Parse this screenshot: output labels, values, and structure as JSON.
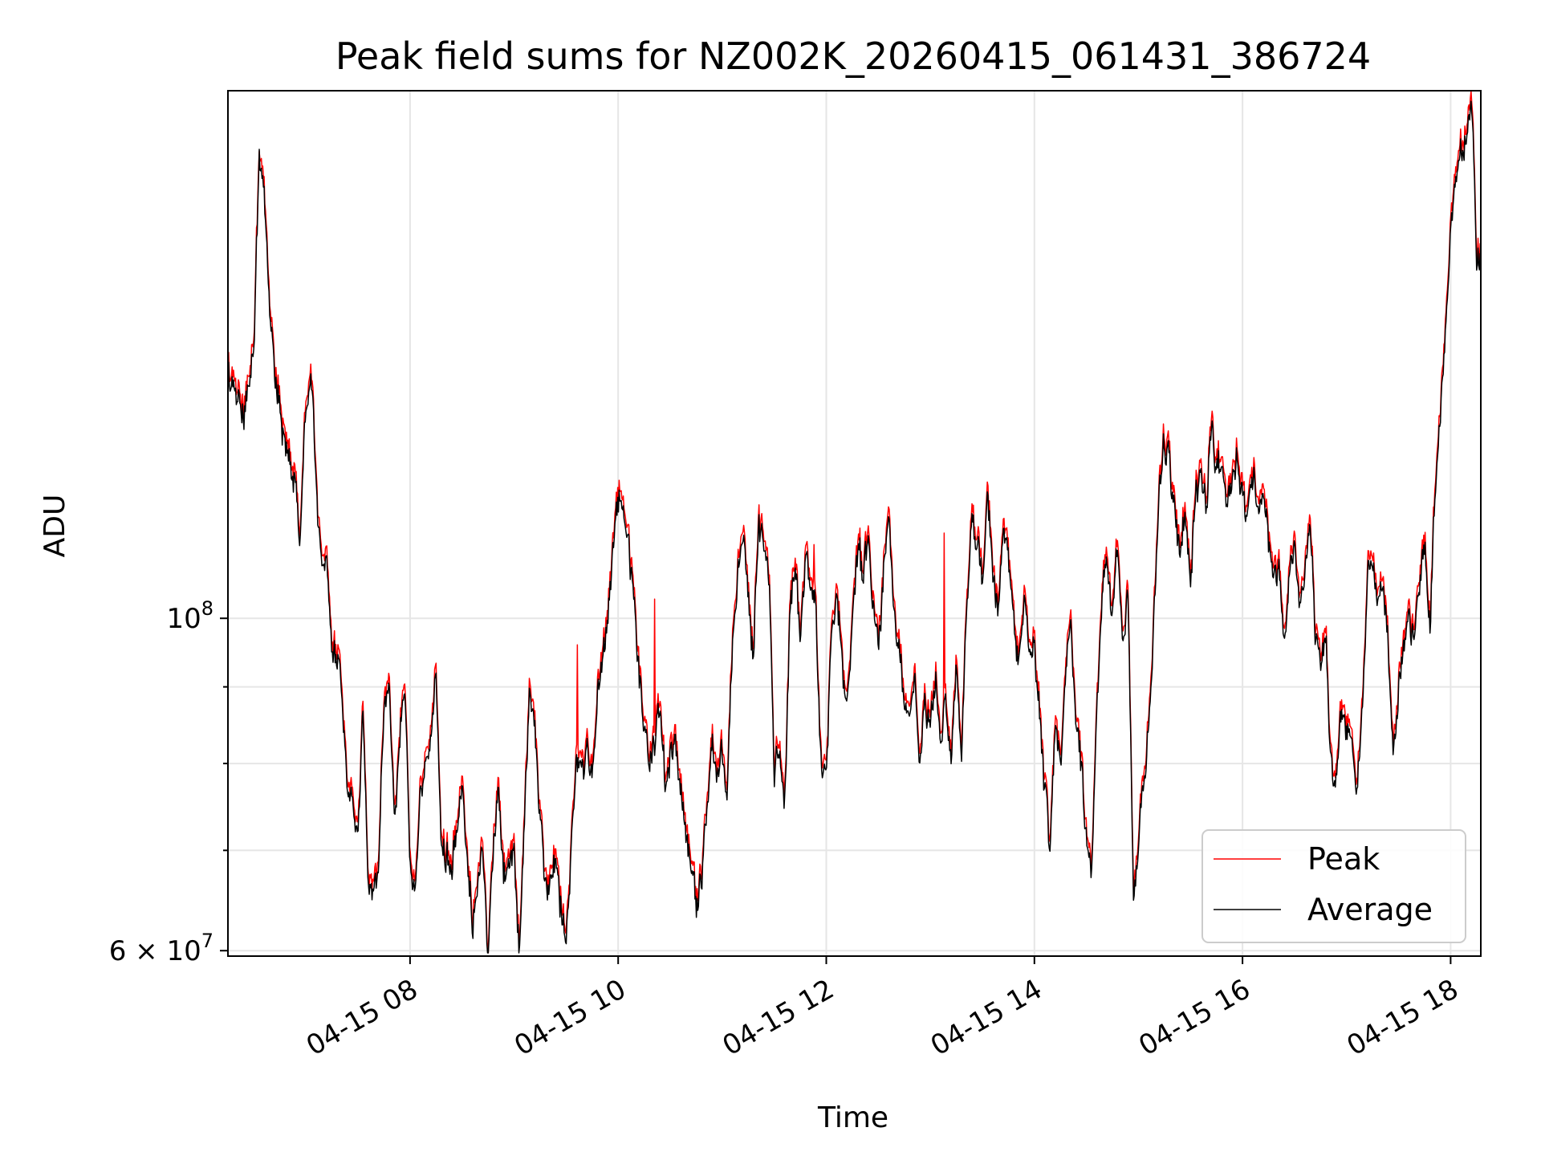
{
  "chart_data": {
    "type": "line",
    "title": "Peak field sums for NZ002K_20260415_061431_386724",
    "xlabel": "Time",
    "ylabel": "ADU",
    "y_scale": "log",
    "ylim": [
      59500000,
      225000000
    ],
    "xlim_hours": [
      6.25,
      18.29
    ],
    "grid": true,
    "legend_position": "lower right",
    "x_ticks": [
      {
        "hour": 8,
        "label": "04-15 08"
      },
      {
        "hour": 10,
        "label": "04-15 10"
      },
      {
        "hour": 12,
        "label": "04-15 12"
      },
      {
        "hour": 14,
        "label": "04-15 14"
      },
      {
        "hour": 16,
        "label": "04-15 16"
      },
      {
        "hour": 18,
        "label": "04-15 18"
      }
    ],
    "y_major_ticks": [
      {
        "value": 100000000,
        "base": "10",
        "exp": "8"
      },
      {
        "value": 60000000,
        "base": "6 × 10",
        "exp": "7"
      }
    ],
    "y_minor_gridlines": [
      70000000,
      80000000,
      90000000
    ],
    "series": [
      {
        "name": "Peak",
        "color": "#ff0000",
        "anomalies": [
          [
            6.55,
            205000000
          ],
          [
            9.61,
            96000000
          ],
          [
            10.35,
            103000000
          ],
          [
            11.88,
            112000000
          ],
          [
            13.13,
            114000000
          ]
        ],
        "keyframes": [
          [
            6.25,
            148000000
          ],
          [
            6.3,
            145000000
          ],
          [
            6.4,
            138000000
          ],
          [
            6.5,
            155000000
          ],
          [
            6.55,
            205000000
          ],
          [
            6.6,
            192000000
          ],
          [
            6.65,
            165000000
          ],
          [
            6.7,
            150000000
          ],
          [
            6.8,
            132000000
          ],
          [
            6.9,
            125000000
          ],
          [
            6.95,
            115000000
          ],
          [
            7.0,
            140000000
          ],
          [
            7.05,
            146000000
          ],
          [
            7.1,
            125000000
          ],
          [
            7.15,
            110000000
          ],
          [
            7.2,
            112000000
          ],
          [
            7.25,
            96000000
          ],
          [
            7.3,
            95000000
          ],
          [
            7.35,
            90000000
          ],
          [
            7.4,
            77000000
          ],
          [
            7.5,
            74000000
          ],
          [
            7.55,
            88000000
          ],
          [
            7.6,
            68000000
          ],
          [
            7.65,
            66000000
          ],
          [
            7.7,
            70000000
          ],
          [
            7.75,
            88000000
          ],
          [
            7.8,
            92000000
          ],
          [
            7.85,
            74000000
          ],
          [
            7.9,
            85000000
          ],
          [
            7.95,
            90000000
          ],
          [
            8.0,
            70000000
          ],
          [
            8.05,
            68000000
          ],
          [
            8.1,
            78000000
          ],
          [
            8.15,
            82000000
          ],
          [
            8.2,
            86000000
          ],
          [
            8.25,
            93000000
          ],
          [
            8.3,
            72000000
          ],
          [
            8.4,
            70000000
          ],
          [
            8.5,
            78000000
          ],
          [
            8.6,
            64000000
          ],
          [
            8.7,
            72000000
          ],
          [
            8.75,
            60500000
          ],
          [
            8.8,
            70000000
          ],
          [
            8.85,
            79000000
          ],
          [
            8.9,
            68000000
          ],
          [
            9.0,
            72000000
          ],
          [
            9.05,
            60000000
          ],
          [
            9.1,
            75000000
          ],
          [
            9.15,
            90000000
          ],
          [
            9.2,
            86000000
          ],
          [
            9.3,
            66000000
          ],
          [
            9.4,
            70000000
          ],
          [
            9.5,
            61000000
          ],
          [
            9.55,
            72000000
          ],
          [
            9.6,
            80000000
          ],
          [
            9.7,
            83000000
          ],
          [
            9.75,
            80000000
          ],
          [
            9.8,
            92000000
          ],
          [
            9.85,
            96000000
          ],
          [
            9.9,
            102000000
          ],
          [
            9.95,
            112000000
          ],
          [
            10.0,
            123000000
          ],
          [
            10.05,
            117000000
          ],
          [
            10.1,
            112000000
          ],
          [
            10.15,
            107000000
          ],
          [
            10.2,
            93000000
          ],
          [
            10.3,
            80000000
          ],
          [
            10.4,
            88000000
          ],
          [
            10.45,
            78000000
          ],
          [
            10.5,
            83000000
          ],
          [
            10.55,
            86000000
          ],
          [
            10.6,
            77000000
          ],
          [
            10.7,
            70000000
          ],
          [
            10.75,
            65000000
          ],
          [
            10.8,
            67000000
          ],
          [
            10.85,
            75000000
          ],
          [
            10.9,
            84000000
          ],
          [
            10.95,
            80000000
          ],
          [
            11.0,
            82000000
          ],
          [
            11.05,
            78000000
          ],
          [
            11.1,
            98000000
          ],
          [
            11.15,
            110000000
          ],
          [
            11.2,
            115000000
          ],
          [
            11.25,
            105000000
          ],
          [
            11.3,
            97000000
          ],
          [
            11.35,
            118000000
          ],
          [
            11.4,
            115000000
          ],
          [
            11.45,
            108000000
          ],
          [
            11.5,
            80000000
          ],
          [
            11.55,
            85000000
          ],
          [
            11.6,
            76000000
          ],
          [
            11.65,
            102000000
          ],
          [
            11.7,
            110000000
          ],
          [
            11.75,
            98000000
          ],
          [
            11.8,
            112000000
          ],
          [
            11.85,
            108000000
          ],
          [
            11.9,
            102000000
          ],
          [
            11.95,
            81000000
          ],
          [
            12.0,
            79000000
          ],
          [
            12.05,
            100000000
          ],
          [
            12.1,
            104000000
          ],
          [
            12.15,
            96000000
          ],
          [
            12.2,
            88000000
          ],
          [
            12.25,
            101000000
          ],
          [
            12.3,
            112000000
          ],
          [
            12.35,
            108000000
          ],
          [
            12.4,
            115000000
          ],
          [
            12.45,
            104000000
          ],
          [
            12.5,
            97000000
          ],
          [
            12.55,
            108000000
          ],
          [
            12.6,
            115000000
          ],
          [
            12.65,
            104000000
          ],
          [
            12.7,
            96000000
          ],
          [
            12.75,
            90000000
          ],
          [
            12.8,
            86000000
          ],
          [
            12.85,
            92000000
          ],
          [
            12.9,
            80000000
          ],
          [
            12.95,
            90000000
          ],
          [
            13.0,
            86000000
          ],
          [
            13.05,
            93000000
          ],
          [
            13.1,
            82000000
          ],
          [
            13.15,
            90000000
          ],
          [
            13.2,
            81000000
          ],
          [
            13.25,
            95000000
          ],
          [
            13.3,
            82000000
          ],
          [
            13.35,
            105000000
          ],
          [
            13.4,
            120000000
          ],
          [
            13.45,
            113000000
          ],
          [
            13.5,
            107000000
          ],
          [
            13.55,
            122000000
          ],
          [
            13.6,
            110000000
          ],
          [
            13.65,
            102000000
          ],
          [
            13.7,
            117000000
          ],
          [
            13.75,
            110000000
          ],
          [
            13.8,
            100000000
          ],
          [
            13.85,
            98000000
          ],
          [
            13.9,
            105000000
          ],
          [
            13.95,
            96000000
          ],
          [
            14.0,
            98000000
          ],
          [
            14.05,
            88000000
          ],
          [
            14.1,
            78000000
          ],
          [
            14.15,
            71000000
          ],
          [
            14.2,
            85000000
          ],
          [
            14.25,
            81000000
          ],
          [
            14.3,
            92000000
          ],
          [
            14.35,
            101000000
          ],
          [
            14.4,
            88000000
          ],
          [
            14.45,
            81000000
          ],
          [
            14.5,
            72000000
          ],
          [
            14.55,
            69000000
          ],
          [
            14.6,
            88000000
          ],
          [
            14.65,
            105000000
          ],
          [
            14.7,
            112000000
          ],
          [
            14.75,
            100000000
          ],
          [
            14.8,
            115000000
          ],
          [
            14.85,
            96000000
          ],
          [
            14.9,
            107000000
          ],
          [
            14.95,
            66000000
          ],
          [
            15.0,
            72000000
          ],
          [
            15.05,
            80000000
          ],
          [
            15.1,
            86000000
          ],
          [
            15.15,
            102000000
          ],
          [
            15.2,
            120000000
          ],
          [
            15.25,
            133000000
          ],
          [
            15.3,
            130000000
          ],
          [
            15.35,
            118000000
          ],
          [
            15.4,
            112000000
          ],
          [
            15.45,
            120000000
          ],
          [
            15.5,
            105000000
          ],
          [
            15.55,
            123000000
          ],
          [
            15.6,
            128000000
          ],
          [
            15.65,
            121000000
          ],
          [
            15.7,
            137000000
          ],
          [
            15.75,
            130000000
          ],
          [
            15.8,
            126000000
          ],
          [
            15.85,
            120000000
          ],
          [
            15.9,
            124000000
          ],
          [
            15.95,
            132000000
          ],
          [
            16.0,
            122000000
          ],
          [
            16.05,
            120000000
          ],
          [
            16.1,
            127000000
          ],
          [
            16.15,
            120000000
          ],
          [
            16.2,
            126000000
          ],
          [
            16.25,
            115000000
          ],
          [
            16.3,
            108000000
          ],
          [
            16.35,
            110000000
          ],
          [
            16.4,
            100000000
          ],
          [
            16.45,
            108000000
          ],
          [
            16.5,
            114000000
          ],
          [
            16.55,
            104000000
          ],
          [
            16.6,
            110000000
          ],
          [
            16.65,
            117000000
          ],
          [
            16.7,
            98000000
          ],
          [
            16.75,
            92000000
          ],
          [
            16.8,
            100000000
          ],
          [
            16.85,
            82000000
          ],
          [
            16.9,
            79000000
          ],
          [
            16.95,
            88000000
          ],
          [
            17.0,
            85000000
          ],
          [
            17.05,
            86000000
          ],
          [
            17.1,
            78000000
          ],
          [
            17.15,
            88000000
          ],
          [
            17.2,
            108000000
          ],
          [
            17.25,
            110000000
          ],
          [
            17.3,
            104000000
          ],
          [
            17.35,
            108000000
          ],
          [
            17.4,
            98000000
          ],
          [
            17.45,
            82000000
          ],
          [
            17.5,
            93000000
          ],
          [
            17.55,
            96000000
          ],
          [
            17.6,
            100000000
          ],
          [
            17.65,
            98000000
          ],
          [
            17.7,
            107000000
          ],
          [
            17.75,
            114000000
          ],
          [
            17.8,
            100000000
          ],
          [
            17.85,
            124000000
          ],
          [
            17.9,
            136000000
          ],
          [
            17.95,
            160000000
          ],
          [
            18.0,
            185000000
          ],
          [
            18.05,
            200000000
          ],
          [
            18.1,
            210000000
          ],
          [
            18.15,
            215000000
          ],
          [
            18.2,
            225000000
          ],
          [
            18.22,
            210000000
          ],
          [
            18.25,
            175000000
          ],
          [
            18.29,
            178000000
          ]
        ]
      },
      {
        "name": "Average",
        "color": "#000000",
        "offset_ratio": 0.985
      }
    ]
  }
}
